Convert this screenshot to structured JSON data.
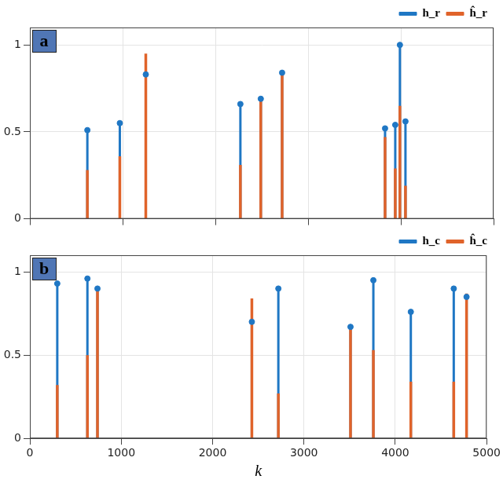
{
  "chart_data": [
    {
      "type": "stem",
      "title": "a",
      "x": [
        620,
        970,
        1250,
        2270,
        2490,
        2720,
        3830,
        3940,
        3990,
        4050
      ],
      "series": [
        {
          "name": "h_r",
          "color": "#1f77c4",
          "marker": "circle",
          "values": [
            0.51,
            0.55,
            0.83,
            0.66,
            0.69,
            0.84,
            0.52,
            0.54,
            1.0,
            0.56
          ]
        },
        {
          "name": "ĥ_r",
          "color": "#e0632a",
          "marker": "none",
          "values": [
            0.28,
            0.36,
            0.95,
            0.31,
            0.68,
            0.84,
            0.47,
            0.29,
            0.65,
            0.19
          ]
        }
      ],
      "xlim": [
        0,
        5000
      ],
      "xticks": [
        0,
        1000,
        2000,
        3000,
        4000,
        5000
      ],
      "ylim": [
        0,
        1.1
      ],
      "yticks": [
        0,
        0.5,
        1
      ],
      "grid": true,
      "legend": "top right",
      "tick_labels": "y"
    },
    {
      "type": "stem",
      "title": "b",
      "x_label": "k",
      "x": [
        300,
        630,
        740,
        2430,
        2720,
        3510,
        3760,
        4170,
        4640,
        4780
      ],
      "series": [
        {
          "name": "h_c",
          "color": "#1f77c4",
          "marker": "circle",
          "values": [
            0.93,
            0.96,
            0.9,
            0.7,
            0.9,
            0.67,
            0.95,
            0.76,
            0.9,
            0.85
          ]
        },
        {
          "name": "ĥ_c",
          "color": "#e0632a",
          "marker": "none",
          "values": [
            0.32,
            0.5,
            0.89,
            0.84,
            0.27,
            0.66,
            0.53,
            0.34,
            0.34,
            0.87
          ]
        }
      ],
      "xlim": [
        0,
        5000
      ],
      "xticks": [
        0,
        1000,
        2000,
        3000,
        4000,
        5000
      ],
      "ylim": [
        0,
        1.1
      ],
      "yticks": [
        0,
        0.5,
        1
      ],
      "grid": true,
      "legend": "top right"
    }
  ]
}
